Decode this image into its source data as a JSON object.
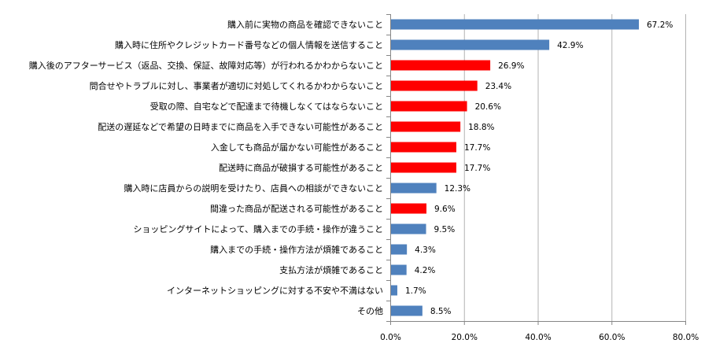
{
  "chart_data": {
    "type": "bar",
    "orientation": "horizontal",
    "title": "",
    "xlabel": "",
    "ylabel": "",
    "xlim": [
      0,
      80
    ],
    "x_ticks": [
      "0.0%",
      "20.0%",
      "40.0%",
      "60.0%",
      "80.0%"
    ],
    "grid": "vertical",
    "categories": [
      "購入前に実物の商品を確認できないこと",
      "購入時に住所やクレジットカード番号などの個人情報を送信すること",
      "購入後のアフターサービス（返品、交換、保証、故障対応等）が行われるかわからないこと",
      "問合せやトラブルに対し、事業者が適切に対処してくれるかわからないこと",
      "受取の際、自宅などで配達まで待機しなくてはならないこと",
      "配送の遅延などで希望の日時までに商品を入手できない可能性があること",
      "入金しても商品が届かない可能性があること",
      "配送時に商品が破損する可能性があること",
      "購入時に店員からの説明を受けたり、店員への相談ができないこと",
      "間違った商品が配送される可能性があること",
      "ショッピングサイトによって、購入までの手続・操作が違うこと",
      "購入までの手続・操作方法が煩雑であること",
      "支払方法が煩雑であること",
      "インターネットショッピングに対する不安や不満はない",
      "その他"
    ],
    "values": [
      67.2,
      42.9,
      26.9,
      23.4,
      20.6,
      18.8,
      17.7,
      17.7,
      12.3,
      9.6,
      9.5,
      4.3,
      4.2,
      1.7,
      8.5
    ],
    "value_labels": [
      "67.2%",
      "42.9%",
      "26.9%",
      "23.4%",
      "20.6%",
      "18.8%",
      "17.7%",
      "17.7%",
      "12.3%",
      "9.6%",
      "9.5%",
      "4.3%",
      "4.2%",
      "1.7%",
      "8.5%"
    ],
    "highlighted": [
      false,
      false,
      true,
      true,
      true,
      true,
      true,
      true,
      false,
      true,
      false,
      false,
      false,
      false,
      false
    ],
    "colors": {
      "normal": "#4F81BD",
      "highlight": "#FF0000",
      "grid": "#B3B3B3",
      "axis": "#868686"
    }
  }
}
